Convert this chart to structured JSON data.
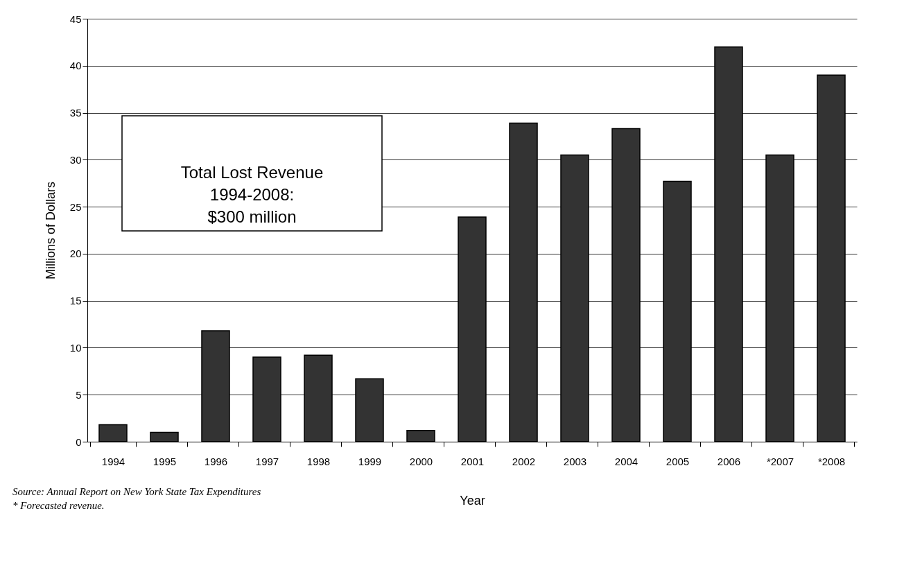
{
  "chart_data": {
    "type": "bar",
    "xlabel": "Year",
    "ylabel": "Millions of Dollars",
    "categories": [
      "1994",
      "1995",
      "1996",
      "1997",
      "1998",
      "1999",
      "2000",
      "2001",
      "2002",
      "2003",
      "2004",
      "2005",
      "2006",
      "*2007",
      "*2008"
    ],
    "values": [
      1.8,
      1.0,
      11.8,
      9.0,
      9.2,
      6.7,
      1.2,
      23.9,
      33.9,
      30.5,
      33.3,
      27.7,
      42.0,
      30.5,
      39.0
    ],
    "color": "#333333",
    "ylim": [
      0,
      45
    ],
    "yticks": [
      0,
      5,
      10,
      15,
      20,
      25,
      30,
      35,
      40,
      45
    ],
    "grid": "y",
    "annotations": [
      "Total Lost Revenue\n1994-2008:\n$300 million",
      "Source: Annual Report on New York State Tax Expenditures",
      "* Forecasted revenue."
    ]
  }
}
